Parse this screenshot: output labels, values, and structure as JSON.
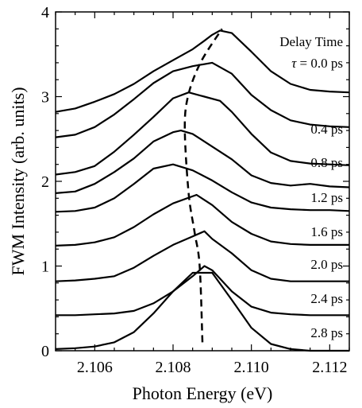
{
  "chart_data": {
    "type": "line",
    "xlabel": "Photon Energy (eV)",
    "ylabel": "FWM Intensity (arb. units)",
    "xlim": [
      2.105,
      2.1125
    ],
    "ylim": [
      0,
      4
    ],
    "x_ticks": [
      "2.106",
      "2.108",
      "2.110",
      "2.112"
    ],
    "x_tick_values": [
      2.106,
      2.108,
      2.11,
      2.112
    ],
    "y_ticks": [
      "0",
      "1",
      "2",
      "3",
      "4"
    ],
    "y_tick_values": [
      0,
      1,
      2,
      3,
      4
    ],
    "grid": false,
    "legend_title": "Delay Time",
    "series": [
      {
        "name": "τ = 0.0 ps",
        "label_parts": [
          "τ",
          " = 0.0 ps"
        ],
        "x": [
          2.105,
          2.1055,
          2.106,
          2.1065,
          2.107,
          2.1075,
          2.108,
          2.1085,
          2.1088,
          2.109,
          2.1092,
          2.1095,
          2.11,
          2.1105,
          2.111,
          2.1115,
          2.112,
          2.1125
        ],
        "y": [
          2.82,
          2.86,
          2.94,
          3.03,
          3.15,
          3.3,
          3.43,
          3.56,
          3.66,
          3.73,
          3.78,
          3.75,
          3.53,
          3.3,
          3.15,
          3.08,
          3.06,
          3.05
        ]
      },
      {
        "name": "0.4 ps",
        "x": [
          2.105,
          2.1055,
          2.106,
          2.1065,
          2.107,
          2.1075,
          2.108,
          2.1085,
          2.109,
          2.1095,
          2.11,
          2.1105,
          2.111,
          2.1115,
          2.112,
          2.1125
        ],
        "y": [
          2.52,
          2.55,
          2.64,
          2.79,
          2.97,
          3.16,
          3.3,
          3.36,
          3.4,
          3.27,
          3.02,
          2.84,
          2.72,
          2.67,
          2.65,
          2.64
        ]
      },
      {
        "name": "0.8 ps",
        "x": [
          2.105,
          2.1055,
          2.106,
          2.1065,
          2.107,
          2.1075,
          2.108,
          2.1084,
          2.1088,
          2.1092,
          2.1095,
          2.11,
          2.1105,
          2.111,
          2.1115,
          2.112,
          2.1125
        ],
        "y": [
          2.08,
          2.11,
          2.18,
          2.35,
          2.55,
          2.76,
          2.98,
          3.05,
          3.0,
          2.95,
          2.82,
          2.56,
          2.34,
          2.24,
          2.21,
          2.2,
          2.19
        ]
      },
      {
        "name": "1.2 ps",
        "x": [
          2.105,
          2.1055,
          2.106,
          2.1065,
          2.107,
          2.1075,
          2.108,
          2.1082,
          2.1085,
          2.109,
          2.1095,
          2.11,
          2.1105,
          2.111,
          2.1115,
          2.112,
          2.1125
        ],
        "y": [
          1.86,
          1.88,
          1.97,
          2.11,
          2.27,
          2.47,
          2.58,
          2.6,
          2.56,
          2.41,
          2.26,
          2.07,
          1.98,
          1.95,
          1.97,
          1.94,
          1.93
        ]
      },
      {
        "name": "1.6 ps",
        "x": [
          2.105,
          2.1055,
          2.106,
          2.1065,
          2.107,
          2.1075,
          2.108,
          2.1085,
          2.109,
          2.1095,
          2.11,
          2.1105,
          2.111,
          2.1115,
          2.112,
          2.1125
        ],
        "y": [
          1.64,
          1.65,
          1.69,
          1.8,
          1.97,
          2.15,
          2.2,
          2.13,
          2.01,
          1.87,
          1.75,
          1.69,
          1.67,
          1.66,
          1.66,
          1.65
        ]
      },
      {
        "name": "2.0 ps",
        "x": [
          2.105,
          2.1055,
          2.106,
          2.1065,
          2.107,
          2.1075,
          2.108,
          2.1086,
          2.109,
          2.1095,
          2.11,
          2.1105,
          2.111,
          2.1115,
          2.112,
          2.1125
        ],
        "y": [
          1.24,
          1.25,
          1.28,
          1.34,
          1.46,
          1.61,
          1.74,
          1.84,
          1.72,
          1.52,
          1.38,
          1.29,
          1.26,
          1.25,
          1.25,
          1.25
        ]
      },
      {
        "name": "2.4 ps",
        "x": [
          2.105,
          2.1055,
          2.106,
          2.1065,
          2.107,
          2.1075,
          2.108,
          2.1085,
          2.1088,
          2.109,
          2.1095,
          2.11,
          2.1105,
          2.111,
          2.1115,
          2.112,
          2.1125
        ],
        "y": [
          0.82,
          0.83,
          0.85,
          0.88,
          0.98,
          1.12,
          1.25,
          1.35,
          1.41,
          1.32,
          1.15,
          0.95,
          0.85,
          0.82,
          0.82,
          0.82,
          0.82
        ]
      },
      {
        "name": "2.8 ps",
        "x": [
          2.105,
          2.1055,
          2.106,
          2.1065,
          2.107,
          2.1075,
          2.108,
          2.1085,
          2.1088,
          2.109,
          2.1095,
          2.11,
          2.1105,
          2.111,
          2.1115,
          2.112,
          2.1125
        ],
        "y": [
          0.42,
          0.42,
          0.43,
          0.44,
          0.47,
          0.56,
          0.7,
          0.88,
          1.0,
          0.95,
          0.7,
          0.52,
          0.45,
          0.43,
          0.42,
          0.42,
          0.42
        ]
      },
      {
        "name": "",
        "x": [
          2.105,
          2.1055,
          2.106,
          2.1065,
          2.107,
          2.1075,
          2.108,
          2.1085,
          2.109,
          2.1095,
          2.11,
          2.1105,
          2.111,
          2.1115,
          2.112,
          2.1125
        ],
        "y": [
          0.02,
          0.03,
          0.05,
          0.1,
          0.22,
          0.44,
          0.7,
          0.92,
          0.92,
          0.6,
          0.27,
          0.08,
          0.02,
          0.0,
          0.0,
          0.0
        ]
      }
    ],
    "peak_trace": {
      "style": "dashed",
      "x": [
        2.10875,
        2.10868,
        2.10855,
        2.1084,
        2.1083,
        2.10838,
        2.1087,
        2.10925
      ],
      "y": [
        0.1,
        1.0,
        1.4,
        1.85,
        2.6,
        3.0,
        3.4,
        3.8
      ]
    }
  }
}
